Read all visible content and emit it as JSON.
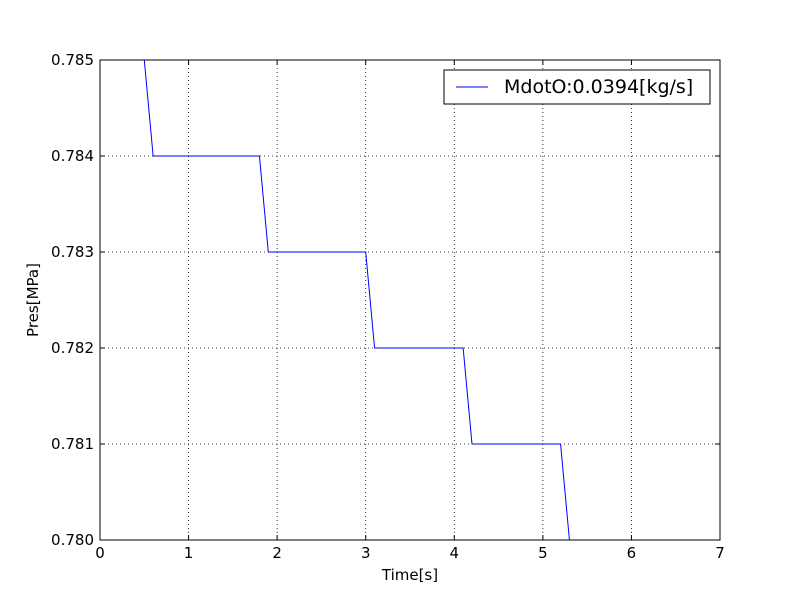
{
  "chart_data": {
    "type": "line",
    "title": "",
    "xlabel": "Time[s]",
    "ylabel": "Pres[MPa]",
    "xlim": [
      0,
      7
    ],
    "ylim": [
      0.78,
      0.785
    ],
    "grid": true,
    "legend_position": "top-right",
    "x_ticks": [
      "0",
      "1",
      "2",
      "3",
      "4",
      "5",
      "6",
      "7"
    ],
    "y_ticks": [
      "0.780",
      "0.781",
      "0.782",
      "0.783",
      "0.784",
      "0.785"
    ],
    "series": [
      {
        "name": "MdotO:0.0394[kg/s]",
        "color": "#0000ff",
        "x": [
          0.5,
          0.6,
          1.8,
          1.9,
          3.0,
          3.1,
          4.1,
          4.2,
          5.2,
          5.3,
          6.1
        ],
        "y": [
          0.785,
          0.784,
          0.784,
          0.783,
          0.783,
          0.782,
          0.782,
          0.781,
          0.781,
          0.78,
          0.78
        ]
      }
    ]
  }
}
